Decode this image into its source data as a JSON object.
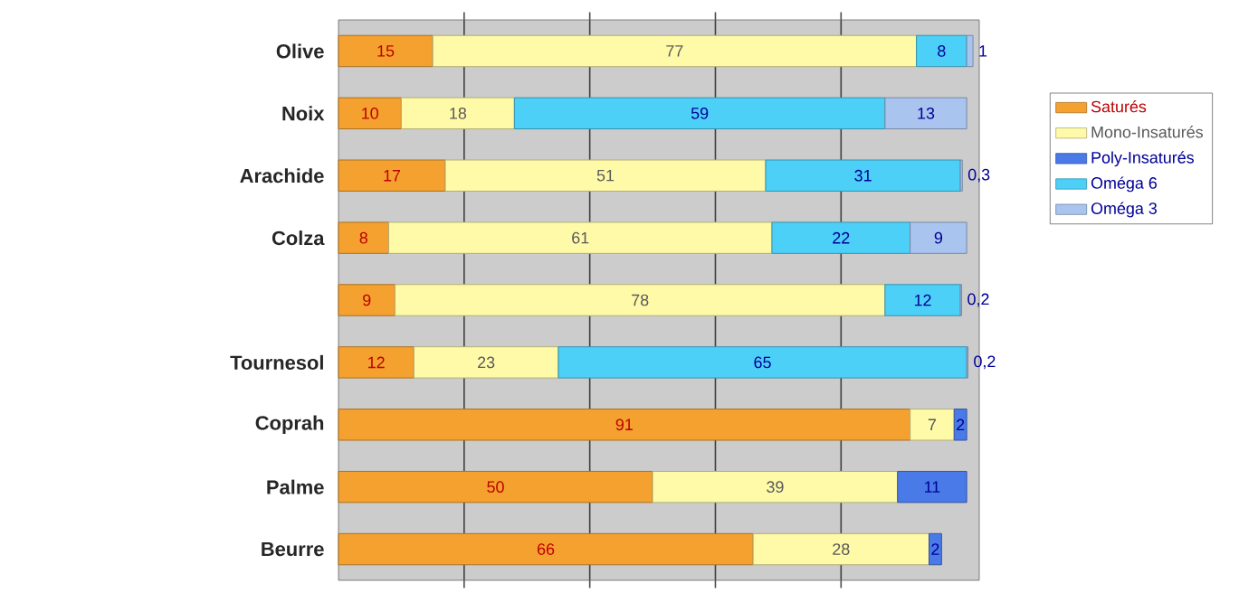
{
  "chart_data": {
    "type": "bar",
    "orientation": "horizontal",
    "stacked": true,
    "categories": [
      "Olive",
      "Noix",
      "Arachide",
      "Colza",
      null,
      "Tournesol",
      "Coprah",
      "Palme",
      "Beurre"
    ],
    "series": [
      {
        "name": "Saturés",
        "color": "#f4a12f",
        "values": [
          15,
          10,
          17,
          8,
          9,
          12,
          91,
          50,
          66
        ],
        "value_labels": [
          "15",
          "10",
          "17",
          "8",
          "9",
          "12",
          "91",
          "50",
          "66"
        ]
      },
      {
        "name": "Mono-Insaturés",
        "color": "#fffaa8",
        "values": [
          77,
          18,
          51,
          61,
          78,
          23,
          7,
          39,
          28
        ],
        "value_labels": [
          "77",
          "18",
          "51",
          "61",
          "78",
          "23",
          "7",
          "39",
          "28"
        ]
      },
      {
        "name": "Poly-Insaturés",
        "color": "#4a7ae8",
        "values": [
          null,
          null,
          null,
          null,
          null,
          null,
          2,
          11,
          2
        ],
        "value_labels": [
          null,
          null,
          null,
          null,
          null,
          null,
          "2",
          "11",
          "2"
        ]
      },
      {
        "name": "Oméga 6",
        "color": "#4dd0f7",
        "values": [
          8,
          59,
          31,
          22,
          12,
          65,
          null,
          null,
          null
        ],
        "value_labels": [
          "8",
          "59",
          "31",
          "22",
          "12",
          "65",
          null,
          null,
          null
        ]
      },
      {
        "name": "Oméga 3",
        "color": "#a9c4ee",
        "values": [
          1,
          13,
          0.3,
          9,
          0.2,
          0.2,
          null,
          null,
          null
        ],
        "value_labels": [
          "1",
          "13",
          "0,3",
          "9",
          "0,2",
          "0,2",
          null,
          null,
          null
        ]
      }
    ],
    "xlim": [
      0,
      102
    ],
    "xticks": [
      {
        "value": 20,
        "label": null
      },
      {
        "value": 40,
        "label": null
      },
      {
        "value": 60,
        "label": null
      },
      {
        "value": 80,
        "label": null
      }
    ],
    "tick_labels": "y",
    "grid": "x",
    "legend": "right"
  }
}
